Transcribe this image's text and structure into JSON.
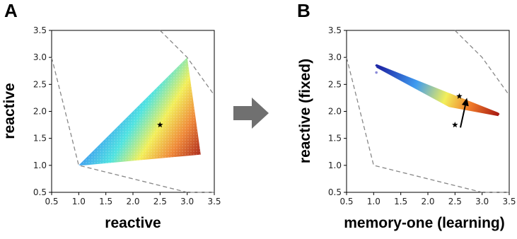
{
  "panels": [
    {
      "letter": "A"
    },
    {
      "letter": "B"
    }
  ],
  "chart_data": [
    {
      "type": "scatter",
      "panel": "A",
      "xlabel": "reactive",
      "ylabel": "reactive",
      "xlim": [
        0.5,
        3.5
      ],
      "ylim": [
        0.5,
        3.5
      ],
      "xticks": [
        "0.5",
        "1.0",
        "1.5",
        "2.0",
        "2.5",
        "3.0",
        "3.5"
      ],
      "yticks": [
        "0.5",
        "1.0",
        "1.5",
        "2.0",
        "2.5",
        "3.0",
        "3.5"
      ],
      "grid": false,
      "boundary": [
        [
          0.5,
          3.0
        ],
        [
          1.0,
          1.0
        ],
        [
          3.0,
          0.5
        ],
        [
          3.5,
          0.5
        ]
      ],
      "boundary_top": [
        [
          2.5,
          3.5
        ],
        [
          3.0,
          3.0
        ],
        [
          3.5,
          2.3
        ]
      ],
      "region": [
        [
          1.0,
          1.0
        ],
        [
          3.0,
          3.0
        ],
        [
          3.25,
          1.2
        ],
        [
          1.1,
          1.0
        ]
      ],
      "colormap": "jet",
      "star": [
        2.5,
        1.75
      ]
    },
    {
      "type": "scatter",
      "panel": "B",
      "xlabel": "memory-one (learning)",
      "ylabel": "reactive (fixed)",
      "xlim": [
        0.5,
        3.5
      ],
      "ylim": [
        0.5,
        3.5
      ],
      "xticks": [
        "0.5",
        "1.0",
        "1.5",
        "2.0",
        "2.5",
        "3.0",
        "3.5"
      ],
      "yticks": [
        "0.5",
        "1.0",
        "1.5",
        "2.0",
        "2.5",
        "3.0",
        "3.5"
      ],
      "grid": false,
      "boundary": [
        [
          0.5,
          3.0
        ],
        [
          1.0,
          1.0
        ],
        [
          3.0,
          0.5
        ],
        [
          3.5,
          0.5
        ]
      ],
      "boundary_top": [
        [
          2.5,
          3.5
        ],
        [
          3.0,
          3.0
        ],
        [
          3.5,
          2.3
        ]
      ],
      "band_start": [
        1.05,
        2.85
      ],
      "band_end": [
        3.3,
        1.95
      ],
      "colormap": "jet",
      "isolated_point": [
        1.05,
        2.72
      ],
      "stars": [
        [
          2.5,
          1.75
        ],
        [
          2.58,
          2.28
        ]
      ],
      "arrow": {
        "from": [
          2.6,
          1.7
        ],
        "to": [
          2.72,
          2.25
        ]
      }
    }
  ],
  "colors": {
    "boundary": "#888888",
    "star": "#000000",
    "arrow": "#000000",
    "transition_arrow": "#707070"
  }
}
